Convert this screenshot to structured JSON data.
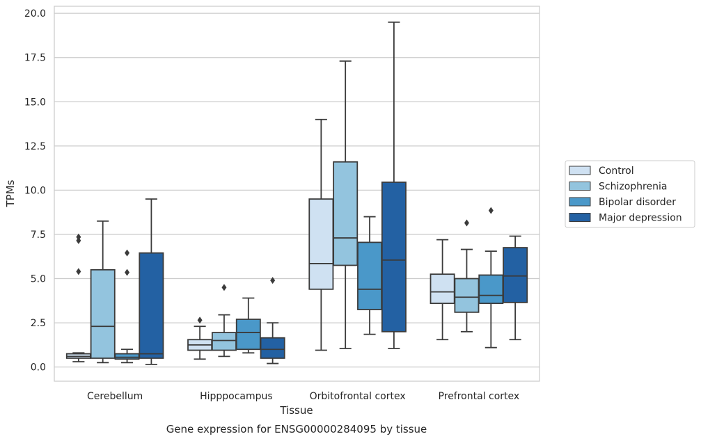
{
  "caption": "Gene expression for ENSG00000284095 by tissue",
  "chart_data": {
    "type": "box",
    "title": "",
    "xlabel": "Tissue",
    "ylabel": "TPMs",
    "ylim": [
      -0.8,
      20.4
    ],
    "yticks": [
      "0.0",
      "2.5",
      "5.0",
      "7.5",
      "10.0",
      "12.5",
      "15.0",
      "17.5",
      "20.0"
    ],
    "grid": "horizontal",
    "legend_position": "right",
    "categories": [
      "Cerebellum",
      "Hipppocampus",
      "Orbitofrontal cortex",
      "Prefrontal cortex"
    ],
    "series": [
      {
        "name": "Control",
        "color": "#cfe1f2",
        "boxes": [
          {
            "whislo": 0.3,
            "q1": 0.5,
            "med": 0.6,
            "q3": 0.75,
            "whishi": 0.8,
            "fliers": [
              5.4,
              7.15,
              7.35
            ]
          },
          {
            "whislo": 0.45,
            "q1": 0.95,
            "med": 1.25,
            "q3": 1.55,
            "whishi": 2.3,
            "fliers": [
              2.65
            ]
          },
          {
            "whislo": 0.95,
            "q1": 4.4,
            "med": 5.85,
            "q3": 9.5,
            "whishi": 14.0,
            "fliers": []
          },
          {
            "whislo": 1.55,
            "q1": 3.6,
            "med": 4.25,
            "q3": 5.25,
            "whishi": 7.2,
            "fliers": []
          }
        ]
      },
      {
        "name": "Schizophrenia",
        "color": "#93c4de",
        "boxes": [
          {
            "whislo": 0.25,
            "q1": 0.5,
            "med": 2.3,
            "q3": 5.5,
            "whishi": 8.25,
            "fliers": []
          },
          {
            "whislo": 0.6,
            "q1": 0.95,
            "med": 1.5,
            "q3": 1.95,
            "whishi": 2.95,
            "fliers": [
              4.5
            ]
          },
          {
            "whislo": 1.05,
            "q1": 5.75,
            "med": 7.3,
            "q3": 11.6,
            "whishi": 17.3,
            "fliers": []
          },
          {
            "whislo": 2.0,
            "q1": 3.1,
            "med": 3.95,
            "q3": 5.0,
            "whishi": 6.65,
            "fliers": [
              8.15
            ]
          }
        ]
      },
      {
        "name": "Bipolar disorder",
        "color": "#4a98c9",
        "boxes": [
          {
            "whislo": 0.25,
            "q1": 0.45,
            "med": 0.55,
            "q3": 0.75,
            "whishi": 1.0,
            "fliers": [
              5.35,
              6.45
            ]
          },
          {
            "whislo": 0.8,
            "q1": 1.0,
            "med": 1.95,
            "q3": 2.7,
            "whishi": 3.9,
            "fliers": []
          },
          {
            "whislo": 1.85,
            "q1": 3.25,
            "med": 4.4,
            "q3": 7.05,
            "whishi": 8.5,
            "fliers": []
          },
          {
            "whislo": 1.1,
            "q1": 3.6,
            "med": 4.05,
            "q3": 5.2,
            "whishi": 6.55,
            "fliers": [
              8.85
            ]
          }
        ]
      },
      {
        "name": "Major depression",
        "color": "#2361a3",
        "boxes": [
          {
            "whislo": 0.15,
            "q1": 0.5,
            "med": 0.75,
            "q3": 6.45,
            "whishi": 9.5,
            "fliers": []
          },
          {
            "whislo": 0.2,
            "q1": 0.5,
            "med": 1.0,
            "q3": 1.65,
            "whishi": 2.5,
            "fliers": [
              4.9
            ]
          },
          {
            "whislo": 1.05,
            "q1": 2.0,
            "med": 6.05,
            "q3": 10.45,
            "whishi": 19.5,
            "fliers": []
          },
          {
            "whislo": 1.55,
            "q1": 3.65,
            "med": 5.15,
            "q3": 6.75,
            "whishi": 7.4,
            "fliers": []
          }
        ]
      }
    ]
  }
}
